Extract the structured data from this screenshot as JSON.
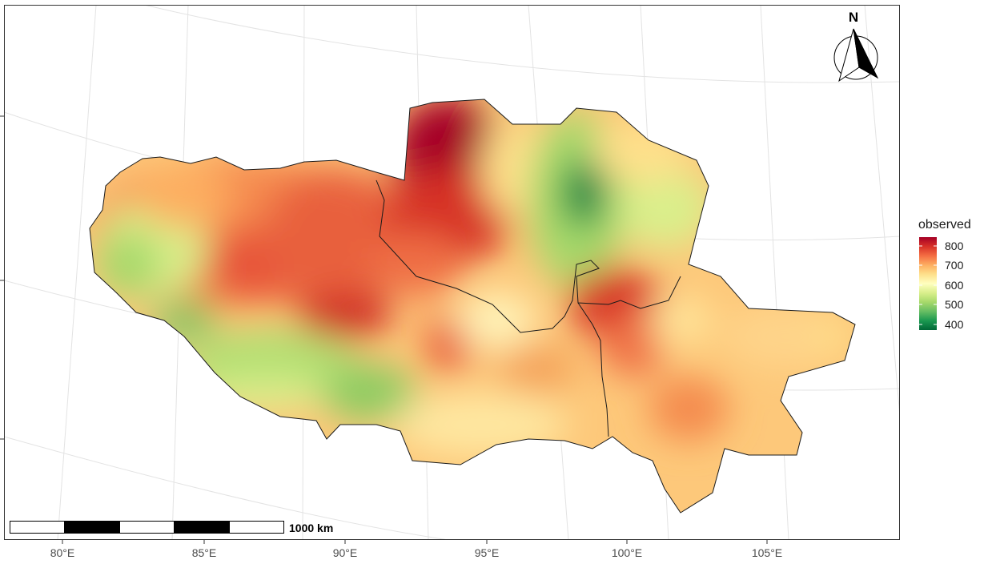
{
  "map": {
    "graticule_lon_labels": [
      "80°E",
      "85°E",
      "90°E",
      "95°E",
      "100°E",
      "105°E"
    ],
    "scale_bar": {
      "label": "1000 km",
      "segments": 5
    },
    "north_arrow": {
      "label": "N"
    }
  },
  "legend": {
    "title": "observed",
    "ticks": [
      "800",
      "700",
      "600",
      "500",
      "400"
    ],
    "colors": [
      "#a50026",
      "#d73027",
      "#f46d43",
      "#fdae61",
      "#fee08b",
      "#ffffbf",
      "#d9ef8b",
      "#a6d96a",
      "#66bd63",
      "#1a9850",
      "#006837"
    ],
    "range": [
      400,
      840
    ]
  },
  "chart_data": {
    "type": "heatmap",
    "title": "",
    "xlabel": "",
    "ylabel": "",
    "x_ticks": [
      "80°E",
      "85°E",
      "90°E",
      "95°E",
      "100°E",
      "105°E"
    ],
    "colorbar": {
      "title": "observed",
      "ticks": [
        800,
        700,
        600,
        500,
        400
      ],
      "range": [
        400,
        840
      ]
    },
    "hotspots": [
      {
        "lon": 93.5,
        "value": 840
      },
      {
        "lon": 98.5,
        "value": 400
      },
      {
        "lon": 89.5,
        "value": 790
      },
      {
        "lon": 87.0,
        "value": 760
      },
      {
        "lon": 99.5,
        "value": 770
      },
      {
        "lon": 94.0,
        "value": 740
      },
      {
        "lon": 102.0,
        "value": 700
      },
      {
        "lon": 89.0,
        "value": 520
      },
      {
        "lon": 83.0,
        "value": 530
      }
    ]
  }
}
